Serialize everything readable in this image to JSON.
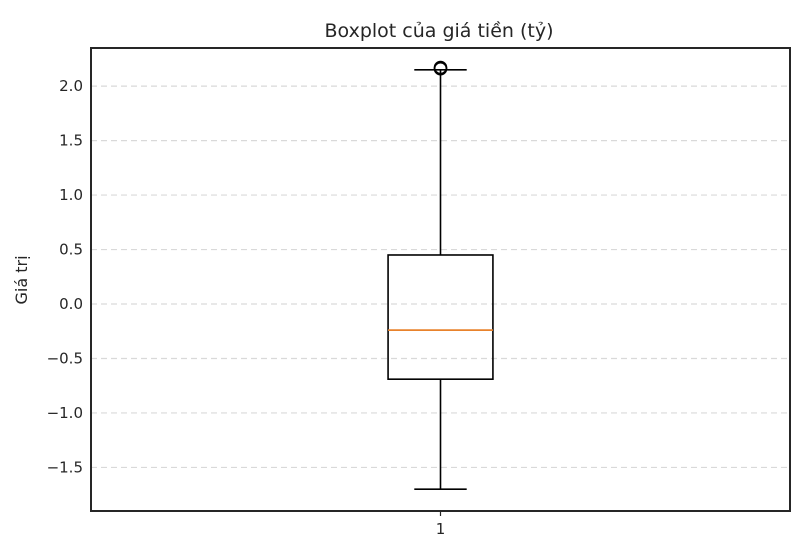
{
  "chart_data": {
    "type": "boxplot",
    "title": "Boxplot của giá tiền (tỷ)",
    "xlabel": "",
    "ylabel": "Giá trị",
    "categories": [
      "1"
    ],
    "ylim": [
      -1.9,
      2.35
    ],
    "yticks": [
      -1.5,
      -1.0,
      -0.5,
      0.0,
      0.5,
      1.0,
      1.5,
      2.0
    ],
    "ytick_labels": [
      "−1.5",
      "−1.0",
      "−0.5",
      "0.0",
      "0.5",
      "1.0",
      "1.5",
      "2.0"
    ],
    "grid": {
      "y": true,
      "x": false,
      "style": "dashed"
    },
    "boxes": [
      {
        "category": "1",
        "whisker_low": -1.7,
        "q1": -0.69,
        "median": -0.24,
        "q3": 0.45,
        "whisker_high": 2.15,
        "outliers": [
          2.16,
          2.17
        ]
      }
    ],
    "colors": {
      "box": "#000000",
      "median": "#e8822c",
      "grid": "#d9d9d9",
      "axes": "#262626"
    }
  }
}
